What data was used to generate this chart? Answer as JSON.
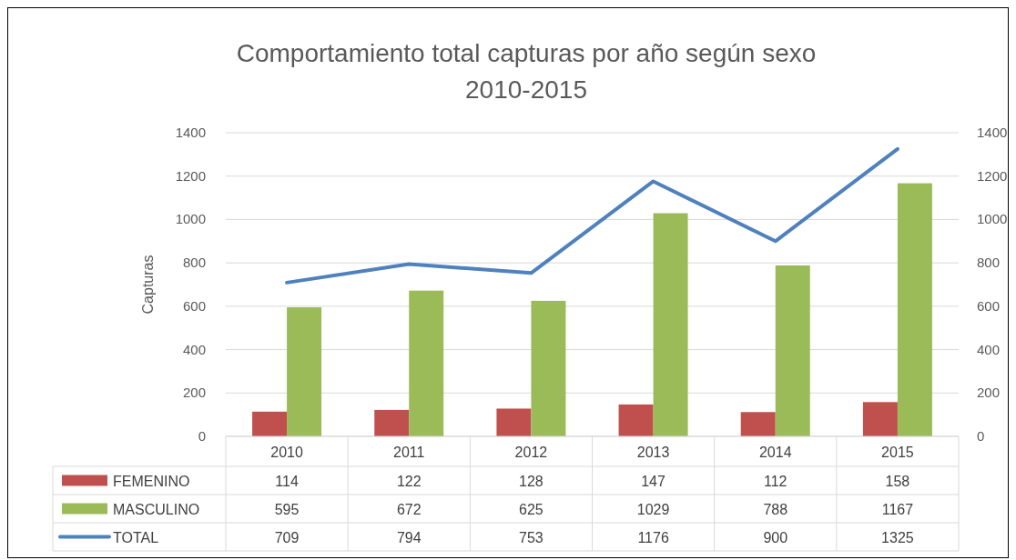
{
  "chart_data": {
    "type": "bar",
    "title": "Comportamiento total capturas por año según sexo\n2010-2015",
    "ylabel": "Capturas",
    "categories": [
      "2010",
      "2011",
      "2012",
      "2013",
      "2014",
      "2015"
    ],
    "series": [
      {
        "name": "FEMENINO",
        "color": "#c0504d",
        "values": [
          114,
          122,
          128,
          147,
          112,
          158
        ]
      },
      {
        "name": "MASCULINO",
        "color": "#9bbb59",
        "values": [
          595,
          672,
          625,
          1029,
          788,
          1167
        ]
      },
      {
        "name": "TOTAL",
        "type": "line",
        "color": "#4f81bd",
        "values": [
          709,
          794,
          753,
          1176,
          900,
          1325
        ]
      }
    ],
    "ylim": [
      0,
      1400
    ],
    "yticks": [
      0,
      200,
      400,
      600,
      800,
      1000,
      1200,
      1400
    ],
    "y2lim": [
      0,
      1400
    ],
    "y2ticks": [
      0,
      200,
      400,
      600,
      800,
      1000,
      1200,
      1400
    ],
    "grid": "y",
    "legend": "bottom",
    "data_labels": true,
    "marker": "none",
    "line_style": "solid"
  }
}
